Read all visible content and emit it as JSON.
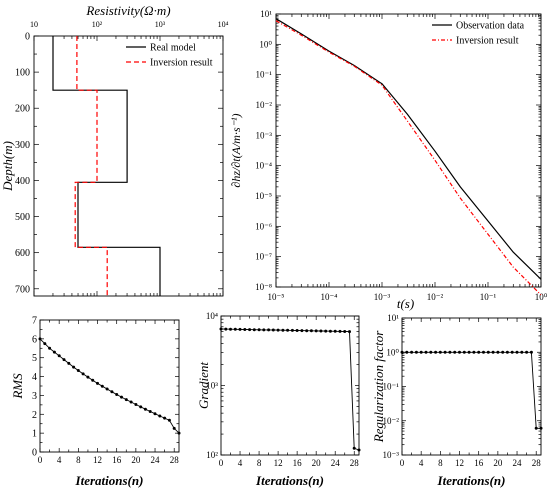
{
  "chart_data": [
    {
      "type": "line",
      "xlabel": "Resistivity(Ω·m)",
      "ylabel": "Depth(m)",
      "xscale": "log",
      "xlim": [
        10,
        10000
      ],
      "ylim": [
        720,
        0
      ],
      "xticks": [
        "10",
        "10²",
        "10³",
        "10⁴"
      ],
      "yticks": [
        "0",
        "100",
        "200",
        "300",
        "400",
        "500",
        "600",
        "700"
      ],
      "legend_position": "top-right",
      "series": [
        {
          "name": "Real model",
          "color": "#000000",
          "style": "solid",
          "points": [
            [
              20,
              0
            ],
            [
              20,
              150
            ],
            [
              300,
              150
            ],
            [
              300,
              405
            ],
            [
              50,
              405
            ],
            [
              50,
              585
            ],
            [
              1000,
              585
            ],
            [
              1000,
              720
            ]
          ]
        },
        {
          "name": "Inversion result",
          "color": "#ff0000",
          "style": "dashed",
          "points": [
            [
              48,
              0
            ],
            [
              48,
              150
            ],
            [
              100,
              150
            ],
            [
              100,
              405
            ],
            [
              45,
              405
            ],
            [
              45,
              585
            ],
            [
              145,
              585
            ],
            [
              145,
              720
            ]
          ]
        }
      ]
    },
    {
      "type": "line",
      "xlabel": "t(s)",
      "ylabel": "∂hz/∂t(A/m·s⁻¹)",
      "xscale": "log",
      "yscale": "log",
      "xlim": [
        1e-05,
        1
      ],
      "ylim": [
        1e-08,
        10
      ],
      "xticks": [
        "10⁻⁵",
        "10⁻⁴",
        "10⁻³",
        "10⁻²",
        "10⁻¹",
        "10⁰"
      ],
      "yticks": [
        "10⁻⁸",
        "10⁻⁷",
        "10⁻⁶",
        "10⁻⁵",
        "10⁻⁴",
        "10⁻³",
        "10⁻²",
        "10⁻¹",
        "10⁰",
        "10¹"
      ],
      "legend_position": "top-right",
      "series": [
        {
          "name": "Observation data",
          "color": "#000000",
          "style": "solid",
          "points": [
            [
              1e-05,
              7
            ],
            [
              3e-05,
              2.2
            ],
            [
              0.0001,
              0.6
            ],
            [
              0.0003,
              0.2
            ],
            [
              0.001,
              0.05
            ],
            [
              0.003,
              0.005
            ],
            [
              0.01,
              0.0003
            ],
            [
              0.03,
              2e-05
            ],
            [
              0.1,
              1.5e-06
            ],
            [
              0.3,
              1.4e-07
            ],
            [
              1,
              1.8e-08
            ]
          ]
        },
        {
          "name": "Inversion result",
          "color": "#ff0000",
          "style": "dash-dot",
          "points": [
            [
              1e-05,
              6
            ],
            [
              3e-05,
              2.0
            ],
            [
              0.0001,
              0.55
            ],
            [
              0.0003,
              0.19
            ],
            [
              0.001,
              0.045
            ],
            [
              0.003,
              0.003
            ],
            [
              0.01,
              0.00015
            ],
            [
              0.03,
              8.5e-06
            ],
            [
              0.1,
              5.5e-07
            ],
            [
              0.3,
              4.5e-08
            ],
            [
              1,
              5.5e-09
            ]
          ]
        }
      ]
    },
    {
      "type": "line",
      "xlabel": "Iterations(n)",
      "ylabel": "RMS",
      "xlim": [
        0,
        29
      ],
      "ylim": [
        0,
        7
      ],
      "xticks": [
        "0",
        "4",
        "8",
        "12",
        "16",
        "20",
        "24",
        "28"
      ],
      "yticks": [
        "0",
        "1",
        "2",
        "3",
        "4",
        "5",
        "6",
        "7"
      ],
      "marker": "dot",
      "series": [
        {
          "x": [
            0,
            1,
            2,
            3,
            4,
            5,
            6,
            7,
            8,
            9,
            10,
            11,
            12,
            13,
            14,
            15,
            16,
            17,
            18,
            19,
            20,
            21,
            22,
            23,
            24,
            25,
            26,
            27,
            28,
            29
          ],
          "values": [
            6.0,
            5.75,
            5.5,
            5.3,
            5.1,
            4.9,
            4.7,
            4.5,
            4.32,
            4.14,
            3.97,
            3.8,
            3.64,
            3.49,
            3.34,
            3.19,
            3.05,
            2.91,
            2.78,
            2.65,
            2.52,
            2.39,
            2.27,
            2.15,
            2.03,
            1.91,
            1.8,
            1.68,
            1.25,
            1.0
          ]
        }
      ]
    },
    {
      "type": "line",
      "xlabel": "Iterations(n)",
      "ylabel": "Gradient",
      "yscale": "log",
      "xlim": [
        0,
        29
      ],
      "ylim": [
        100,
        10000
      ],
      "xticks": [
        "0",
        "4",
        "8",
        "12",
        "16",
        "20",
        "24",
        "28"
      ],
      "yticks": [
        "10²",
        "10³",
        "10⁴"
      ],
      "marker": "dot",
      "series": [
        {
          "x": [
            0,
            1,
            2,
            3,
            4,
            5,
            6,
            7,
            8,
            9,
            10,
            11,
            12,
            13,
            14,
            15,
            16,
            17,
            18,
            19,
            20,
            21,
            22,
            23,
            24,
            25,
            26,
            27,
            28,
            29
          ],
          "values": [
            6500,
            6480,
            6460,
            6440,
            6420,
            6400,
            6380,
            6360,
            6340,
            6320,
            6300,
            6280,
            6260,
            6240,
            6220,
            6200,
            6180,
            6160,
            6140,
            6120,
            6100,
            6080,
            6060,
            6040,
            6020,
            6000,
            5980,
            5960,
            125,
            118
          ]
        }
      ]
    },
    {
      "type": "line",
      "xlabel": "Iterations(n)",
      "ylabel": "Regularization factor",
      "yscale": "log",
      "xlim": [
        0,
        29
      ],
      "ylim": [
        0.001,
        10
      ],
      "xticks": [
        "0",
        "4",
        "8",
        "12",
        "16",
        "20",
        "24",
        "28"
      ],
      "yticks": [
        "10⁻³",
        "10⁻²",
        "10⁻¹",
        "10⁰",
        "10¹"
      ],
      "marker": "dot",
      "series": [
        {
          "x": [
            0,
            1,
            2,
            3,
            4,
            5,
            6,
            7,
            8,
            9,
            10,
            11,
            12,
            13,
            14,
            15,
            16,
            17,
            18,
            19,
            20,
            21,
            22,
            23,
            24,
            25,
            26,
            27,
            28,
            29
          ],
          "values": [
            1,
            1,
            1,
            1,
            1,
            1,
            1,
            1,
            1,
            1,
            1,
            1,
            1,
            1,
            1,
            1,
            1,
            1,
            1,
            1,
            1,
            1,
            1,
            1,
            1,
            1,
            1,
            1,
            0.006,
            0.006
          ]
        }
      ]
    }
  ]
}
